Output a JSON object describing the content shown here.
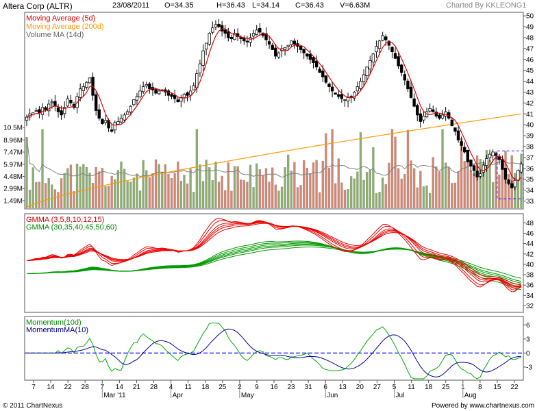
{
  "header": {
    "symbol": "Altera Corp (ALTR)",
    "date": "23/08/2011",
    "open": "O=34.35",
    "high": "H=36.43",
    "low": "L=34.14",
    "close": "C=36.43",
    "volume": "V=6.63M",
    "charted_by": "Charted By KKLEONG1"
  },
  "footer": {
    "copyright": "© 2011 ChartNexus",
    "powered": "Powered by www.chartnexus.com"
  },
  "colors": {
    "ma5": "#dd0000",
    "ma200": "#ff9900",
    "volume_ma": "#808080",
    "gmma_short": "#ee0000",
    "gmma_long": "#009900",
    "momentum": "#00aa00",
    "momentum_ma": "#000099",
    "up_bar": "#8faa77",
    "down_bar": "#c98a7a",
    "zero_line": "#0000ff"
  },
  "chart_data": [
    {
      "type": "candlestick",
      "panel": "price",
      "title": "Altera Corp (ALTR)",
      "legend": [
        "Moving Average (5d)",
        "Moving Average (200d)",
        "Volume MA (14d)"
      ],
      "price_axis": {
        "ticks": [
          33,
          34,
          35,
          36,
          37,
          38,
          39,
          40,
          41,
          42,
          43,
          44,
          45,
          46,
          47,
          48,
          49,
          50
        ],
        "ylim": [
          32.4,
          50.2
        ]
      },
      "volume_axis": {
        "labels": [
          "10.5M",
          "8.96M",
          "7.47M",
          "5.97M",
          "4.48M",
          "2.99M",
          "1.49M"
        ],
        "values": [
          10.5,
          8.96,
          7.47,
          5.97,
          4.48,
          2.99,
          1.49
        ],
        "unit": "M"
      },
      "x_axis": {
        "day_ticks": [
          "7",
          "14",
          "22",
          "28",
          "7",
          "14",
          "21",
          "28",
          "4",
          "11",
          "18",
          "25",
          "2",
          "9",
          "16",
          "23",
          "31",
          "6",
          "13",
          "20",
          "27",
          "5",
          "11",
          "18",
          "25",
          "1",
          "8",
          "15",
          "22"
        ],
        "month_labels": [
          "Mar '11",
          "Apr",
          "May",
          "Jun",
          "Jul",
          "Aug"
        ]
      },
      "close_series": [
        40.7,
        41.0,
        41.1,
        41.3,
        41.1,
        41.6,
        41.4,
        41.9,
        42.1,
        41.7,
        41.2,
        40.9,
        41.6,
        42.4,
        42.0,
        41.6,
        42.6,
        43.3,
        43.5,
        43.9,
        44.3,
        42.7,
        41.3,
        40.6,
        40.1,
        40.4,
        39.7,
        39.4,
        40.2,
        40.3,
        40.6,
        40.9,
        41.2,
        41.7,
        42.3,
        42.6,
        43.1,
        43.5,
        43.7,
        43.3,
        43.2,
        42.9,
        43.1,
        43.2,
        43.0,
        42.7,
        42.6,
        42.4,
        42.1,
        42.5,
        42.8,
        42.7,
        43.1,
        43.6,
        44.7,
        45.6,
        46.8,
        47.5,
        48.4,
        48.9,
        49.2,
        49.0,
        48.6,
        48.4,
        48.0,
        47.9,
        48.4,
        48.1,
        47.9,
        47.7,
        47.6,
        48.0,
        48.4,
        48.7,
        48.5,
        48.2,
        47.8,
        47.4,
        46.9,
        46.3,
        46.6,
        47.0,
        47.1,
        47.3,
        47.7,
        47.4,
        47.2,
        46.9,
        46.6,
        46.3,
        46.0,
        45.7,
        45.3,
        44.8,
        44.4,
        43.9,
        43.5,
        43.1,
        42.8,
        42.6,
        42.4,
        42.3,
        42.5,
        42.6,
        43.0,
        43.5,
        44.0,
        44.6,
        45.3,
        45.9,
        46.5,
        47.2,
        47.7,
        48.2,
        47.8,
        47.3,
        46.7,
        46.1,
        45.4,
        44.8,
        44.1,
        43.3,
        42.5,
        41.7,
        40.9,
        40.3,
        40.8,
        41.2,
        41.5,
        41.2,
        40.8,
        40.6,
        40.9,
        41.2,
        40.6,
        39.9,
        39.4,
        38.6,
        38.1,
        37.5,
        36.6,
        36.2,
        35.8,
        35.2,
        35.5,
        36.3,
        36.9,
        37.3,
        37.5,
        37.2,
        36.8,
        35.9,
        35.0,
        34.6,
        34.2,
        34.9,
        35.8,
        36.4
      ],
      "ma200_range": [
        32.4,
        41.0
      ],
      "highlight_box": "last 7 sessions (dashed blue)"
    },
    {
      "type": "line",
      "panel": "gmma",
      "legend": [
        "GMMA (3,5,8,10,12,15)",
        "GMMA (30,35,40,45,50,60)"
      ],
      "y_ticks": [
        48,
        46,
        44,
        42,
        40,
        38,
        36,
        34,
        32
      ],
      "ylim": [
        31,
        49.5
      ],
      "short_periods": [
        3,
        5,
        8,
        10,
        12,
        15
      ],
      "long_periods": [
        30,
        35,
        40,
        45,
        50,
        60
      ]
    },
    {
      "type": "line",
      "panel": "momentum",
      "legend": [
        "Momentum(10d)",
        "MomentumMA(10)"
      ],
      "y_ticks": [
        6,
        3,
        0,
        -3
      ],
      "ylim": [
        -5.5,
        7.5
      ],
      "zero_line": 0
    }
  ]
}
